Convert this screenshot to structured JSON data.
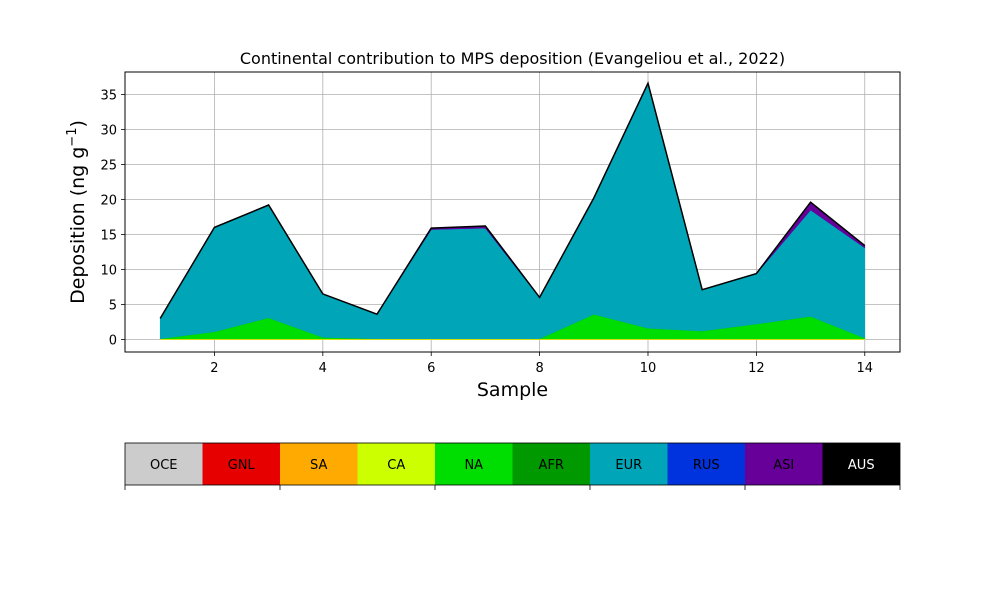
{
  "chart_data": {
    "type": "area",
    "title": "Continental contribution to MPS deposition (Evangeliou et al., 2022)",
    "xlabel": "Sample",
    "ylabel": "Deposition (ng g",
    "ylabel_superscript": "−1",
    "ylabel_close": ")",
    "xlim": [
      0.35,
      14.65
    ],
    "ylim": [
      -1.8,
      38.2
    ],
    "xticks": [
      2,
      4,
      6,
      8,
      10,
      12,
      14
    ],
    "yticks": [
      0,
      5,
      10,
      15,
      20,
      25,
      30,
      35
    ],
    "grid": true,
    "stacked": true,
    "x": [
      1,
      2,
      3,
      4,
      5,
      6,
      7,
      8,
      9,
      10,
      11,
      12,
      13,
      14
    ],
    "series": [
      {
        "name": "OCE",
        "color": "#cccccc",
        "values": [
          0,
          0,
          0,
          0,
          0,
          0,
          0,
          0,
          0,
          0,
          0,
          0,
          0,
          0
        ]
      },
      {
        "name": "GNL",
        "color": "#e60000",
        "values": [
          0,
          0,
          0,
          0,
          0,
          0,
          0,
          0,
          0,
          0,
          0,
          0,
          0,
          0
        ]
      },
      {
        "name": "SA",
        "color": "#ffaa00",
        "values": [
          0,
          0,
          0,
          0,
          0,
          0,
          0,
          0,
          0,
          0,
          0,
          0,
          0,
          0
        ]
      },
      {
        "name": "CA",
        "color": "#ccff00",
        "values": [
          0.1,
          0.1,
          0.1,
          0.1,
          0.1,
          0.1,
          0.1,
          0.1,
          0.1,
          0.1,
          0.1,
          0.1,
          0.1,
          0.1
        ]
      },
      {
        "name": "NA",
        "color": "#00dd00",
        "values": [
          0,
          1,
          3,
          0.2,
          0,
          0,
          0,
          0,
          3.5,
          1.5,
          1.1,
          2.1,
          3.2,
          0.1
        ]
      },
      {
        "name": "AFR",
        "color": "#009900",
        "values": [
          0,
          0,
          0,
          0,
          0,
          0,
          0,
          0,
          0,
          0,
          0,
          0,
          0,
          0
        ]
      },
      {
        "name": "EUR",
        "color": "#00a6b8",
        "values": [
          2.9,
          14.9,
          16.1,
          6.2,
          3.5,
          15.6,
          15.8,
          5.9,
          16.6,
          34.9,
          5.9,
          7.2,
          15.2,
          12.9
        ]
      },
      {
        "name": "RUS",
        "color": "#0033dd",
        "values": [
          0,
          0,
          0,
          0,
          0,
          0,
          0,
          0,
          0,
          0,
          0,
          0,
          0,
          0
        ]
      },
      {
        "name": "ASI",
        "color": "#660099",
        "values": [
          0,
          0,
          0,
          0,
          0,
          0.2,
          0.3,
          0,
          0,
          0.1,
          0,
          0,
          1.1,
          0.3
        ]
      },
      {
        "name": "AUS",
        "color": "#000000",
        "values": [
          0,
          0,
          0,
          0,
          0,
          0,
          0,
          0,
          0,
          0,
          0,
          0,
          0,
          0
        ]
      }
    ],
    "colorbar": {
      "labels": [
        "OCE",
        "GNL",
        "SA",
        "CA",
        "NA",
        "AFR",
        "EUR",
        "RUS",
        "ASI",
        "AUS"
      ],
      "label_colors": [
        "#000000",
        "#000000",
        "#000000",
        "#000000",
        "#000000",
        "#000000",
        "#000000",
        "#000000",
        "#000000",
        "#ffffff"
      ]
    }
  }
}
